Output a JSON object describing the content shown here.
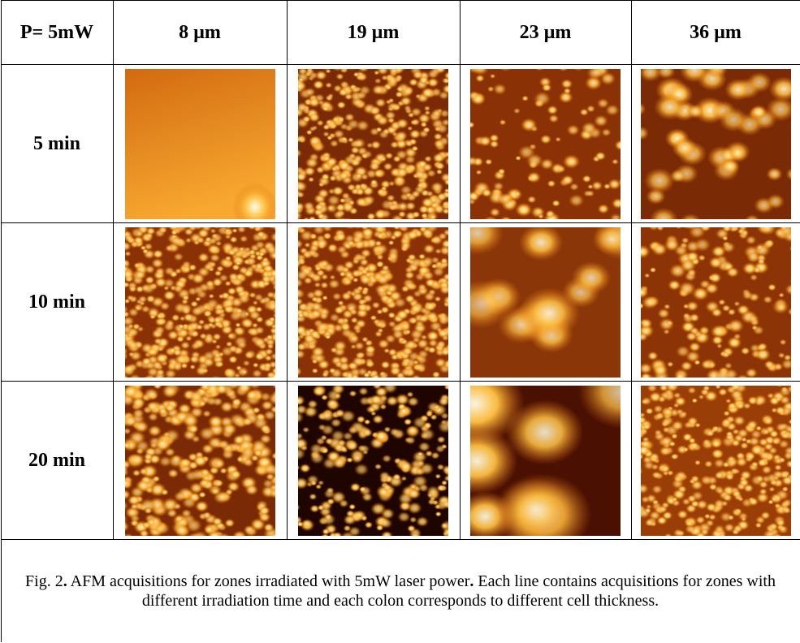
{
  "table": {
    "header": [
      "P= 5mW",
      "8 µm",
      "19 µm",
      "23 µm",
      "36 µm"
    ],
    "rows": [
      "5 min",
      "10 min",
      "20 min"
    ]
  },
  "caption": [
    "Fig. 2",
    ".",
    "AFM acquisitions for zones irradiated with 5mW laser power",
    ".",
    "Each line contains acquisitions for zones with different irradiation time and each colon corresponds to different cell thickness."
  ]
}
